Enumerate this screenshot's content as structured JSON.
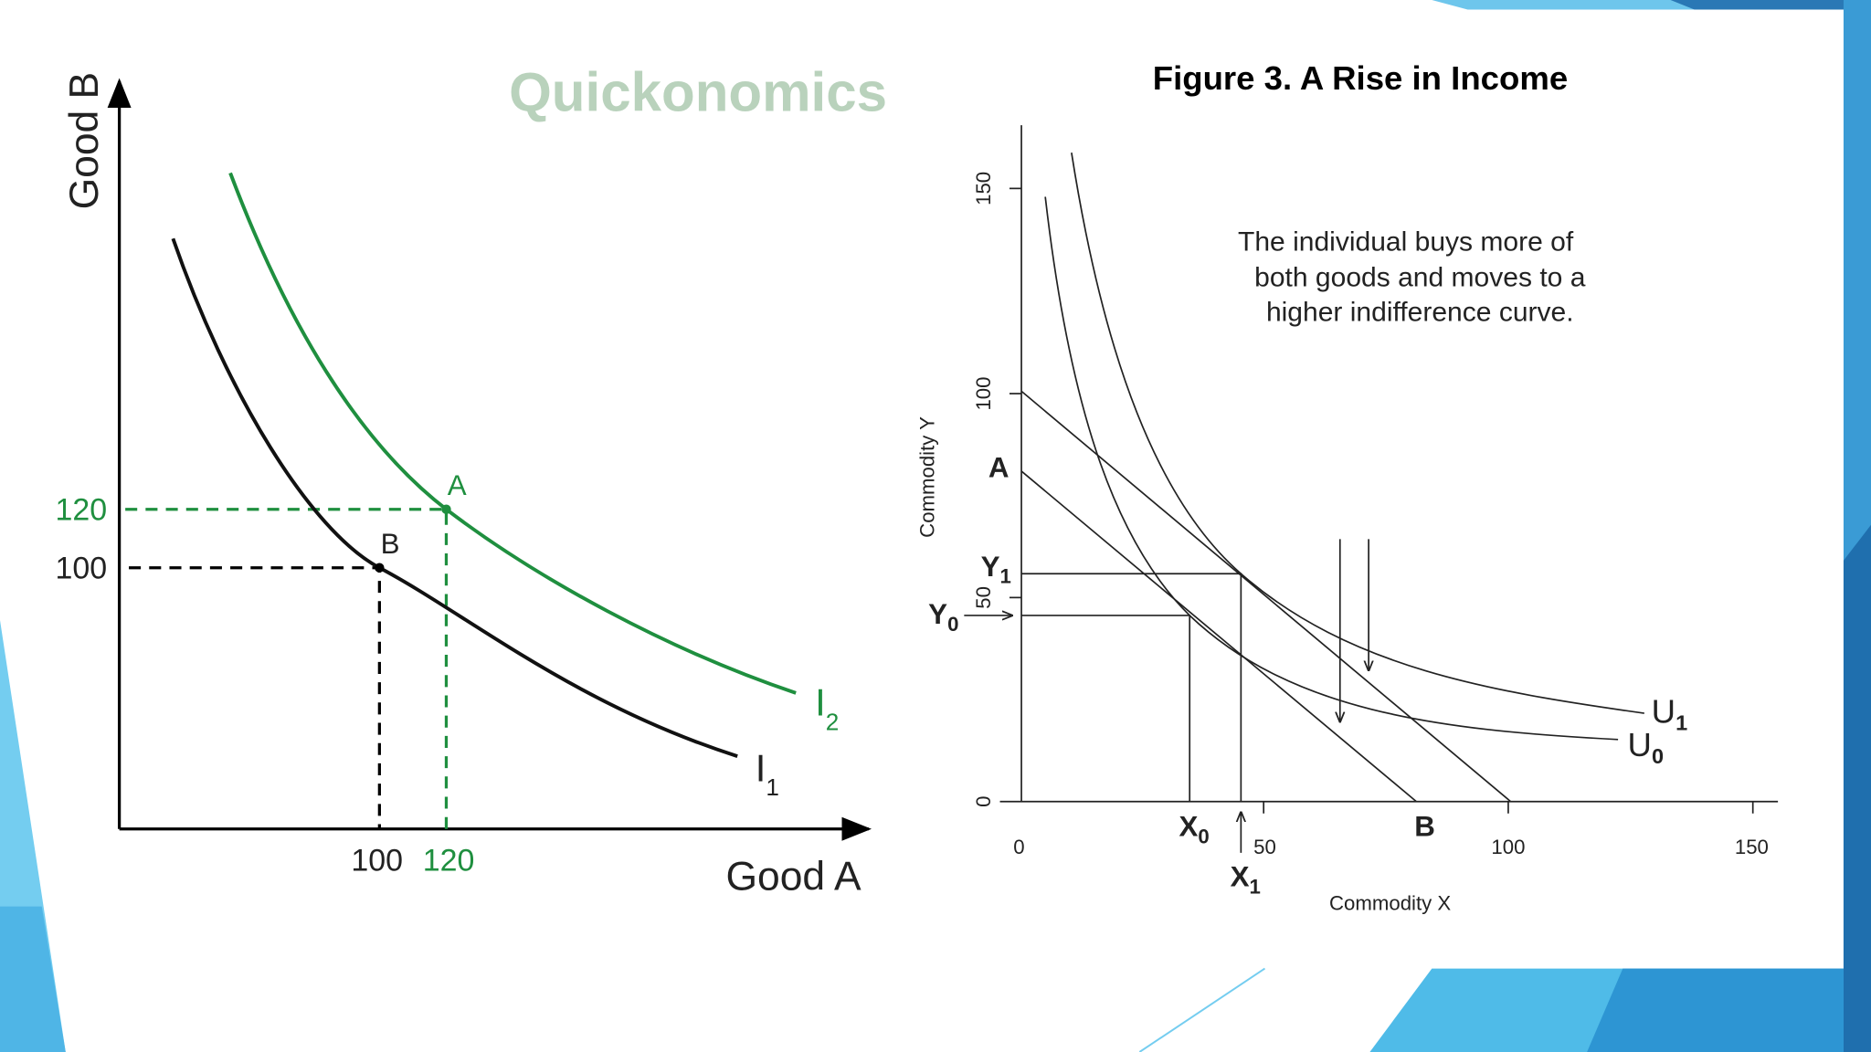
{
  "left_figure": {
    "watermark": "Quickonomics",
    "y_axis_label": "Good B",
    "x_axis_label": "Good A",
    "y_ticks": [
      "120",
      "100"
    ],
    "x_ticks": [
      "100",
      "120"
    ],
    "points": [
      "A",
      "B"
    ],
    "curves": [
      {
        "label": "I",
        "subscript": "2"
      },
      {
        "label": "I",
        "subscript": "1"
      }
    ]
  },
  "right_figure": {
    "title": "Figure 3.  A Rise in Income",
    "y_axis_label": "Commodity Y",
    "x_axis_label": "Commodity X",
    "y_ticks": [
      "150",
      "100",
      "50",
      "0"
    ],
    "x_ticks": [
      "0",
      "50",
      "100",
      "150"
    ],
    "annotation": [
      "The individual buys more of",
      "both goods and moves to a",
      "higher indifference curve."
    ],
    "budget_labels": [
      "A",
      "B"
    ],
    "markers": {
      "y1": {
        "label": "Y",
        "subscript": "1"
      },
      "y0": {
        "label": "Y",
        "subscript": "0"
      },
      "x0": {
        "label": "X",
        "subscript": "0"
      },
      "x1": {
        "label": "X",
        "subscript": "1"
      }
    },
    "curves": [
      {
        "label": "U",
        "subscript": "1"
      },
      {
        "label": "U",
        "subscript": "0"
      }
    ]
  }
}
